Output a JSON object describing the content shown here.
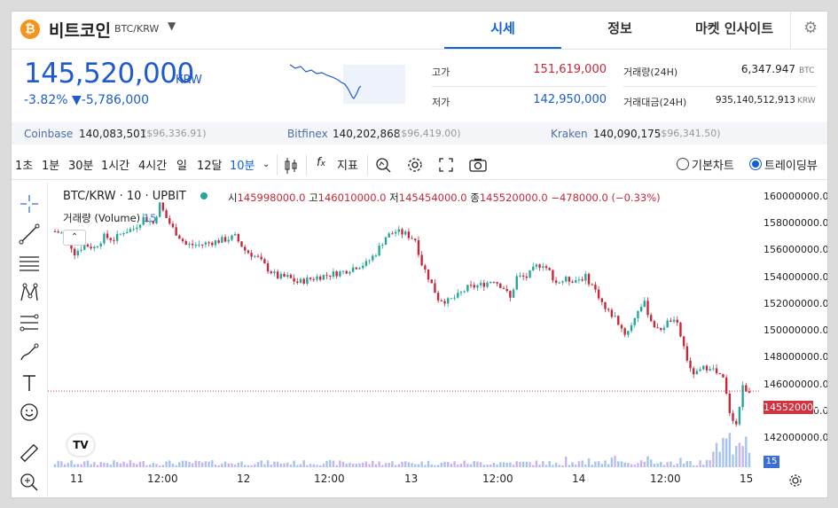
{
  "header": {
    "coin_symbol": "₿",
    "coin_name": "비트코인",
    "pair": "BTC/KRW",
    "tabs": [
      {
        "label": "시세",
        "active": true
      },
      {
        "label": "정보",
        "active": false
      },
      {
        "label": "마켓 인사이트",
        "active": false
      }
    ],
    "settings_icon": "gear-icon"
  },
  "ticker": {
    "price": "145,520,000",
    "currency": "KRW",
    "change_percent": "-3.82%",
    "change_arrow": "▼",
    "change_amount": "-5,786,000",
    "high_label": "고가",
    "high": "151,619,000",
    "low_label": "저가",
    "low": "142,950,000",
    "volume_label": "거래량(24H)",
    "volume": "6,347.947",
    "volume_unit": "BTC",
    "turnover_label": "거래대금(24H)",
    "turnover": "935,140,512,913",
    "turnover_unit": "KRW"
  },
  "exchanges": [
    {
      "name": "Coinbase",
      "price": "140,083,501",
      "usd": "($96,336.91)"
    },
    {
      "name": "Bitfinex",
      "price": "140,202,868",
      "usd": "($96,419.00)"
    },
    {
      "name": "Kraken",
      "price": "140,090,175",
      "usd": "($96,341.50)"
    }
  ],
  "toolbar": {
    "intervals": [
      "1초",
      "1분",
      "30분",
      "1시간",
      "4시간",
      "일",
      "12달",
      "10분"
    ],
    "active_interval": "10분",
    "indicator_label": "지표",
    "view_options": [
      {
        "label": "기본차트",
        "selected": false
      },
      {
        "label": "트레이딩뷰",
        "selected": true
      }
    ]
  },
  "colors": {
    "up": "#26a69a",
    "down": "#c6283a",
    "accent": "#1161d9",
    "price_blue": "#1e5ad1"
  },
  "chart_data": {
    "type": "candlestick",
    "symbol_line": "BTC/KRW · 10 · UPBIT",
    "ohlc_label": {
      "o_key": "시",
      "o": "145998000.0",
      "h_key": "고",
      "h": "146010000.0",
      "l_key": "저",
      "l": "145454000.0",
      "c_key": "종",
      "c": "145520000.0",
      "chg": "−478000.0 (−0.33%)"
    },
    "volume_label": "거래량 (Volume)",
    "volume_value": "15",
    "last_price_tag": "145520000.0",
    "volume_tag": "15",
    "y_ticks": [
      "160000000.0",
      "158000000.0",
      "156000000.0",
      "154000000.0",
      "152000000.0",
      "150000000.0",
      "148000000.0",
      "146000000.0",
      "144000000.0",
      "142000000.0"
    ],
    "ylim": [
      141500000,
      160500000
    ],
    "x_ticks": [
      "11",
      "12:00",
      "12",
      "12:00",
      "13",
      "12:00",
      "14",
      "12:00",
      "15"
    ],
    "close_path": [
      [
        0,
        157400000
      ],
      [
        3,
        157200000
      ],
      [
        6,
        155800000
      ],
      [
        9,
        156400000
      ],
      [
        12,
        156200000
      ],
      [
        15,
        157000000
      ],
      [
        18,
        156800000
      ],
      [
        21,
        157400000
      ],
      [
        24,
        157600000
      ],
      [
        27,
        158400000
      ],
      [
        30,
        158000000
      ],
      [
        32,
        159400000
      ],
      [
        34,
        158400000
      ],
      [
        36,
        157600000
      ],
      [
        40,
        156400000
      ],
      [
        44,
        156400000
      ],
      [
        48,
        156600000
      ],
      [
        52,
        156800000
      ],
      [
        55,
        157000000
      ],
      [
        58,
        156000000
      ],
      [
        62,
        155400000
      ],
      [
        65,
        154600000
      ],
      [
        68,
        154000000
      ],
      [
        71,
        154000000
      ],
      [
        74,
        153600000
      ],
      [
        77,
        153800000
      ],
      [
        80,
        154000000
      ],
      [
        84,
        154200000
      ],
      [
        88,
        154400000
      ],
      [
        92,
        154800000
      ],
      [
        95,
        155000000
      ],
      [
        98,
        155800000
      ],
      [
        101,
        157000000
      ],
      [
        104,
        157400000
      ],
      [
        107,
        157200000
      ],
      [
        110,
        156800000
      ],
      [
        112,
        155000000
      ],
      [
        114,
        154000000
      ],
      [
        117,
        152400000
      ],
      [
        120,
        152200000
      ],
      [
        123,
        152600000
      ],
      [
        126,
        153200000
      ],
      [
        130,
        153400000
      ],
      [
        134,
        153800000
      ],
      [
        137,
        153200000
      ],
      [
        139,
        152400000
      ],
      [
        141,
        154000000
      ],
      [
        144,
        154000000
      ],
      [
        147,
        154800000
      ],
      [
        149,
        155000000
      ],
      [
        151,
        154400000
      ],
      [
        153,
        153600000
      ],
      [
        156,
        153800000
      ],
      [
        159,
        153800000
      ],
      [
        162,
        154000000
      ],
      [
        164,
        153400000
      ],
      [
        166,
        152600000
      ],
      [
        168,
        151600000
      ],
      [
        171,
        151000000
      ],
      [
        174,
        149800000
      ],
      [
        176,
        150400000
      ],
      [
        178,
        151600000
      ],
      [
        180,
        152000000
      ],
      [
        182,
        150800000
      ],
      [
        184,
        150000000
      ],
      [
        186,
        150400000
      ],
      [
        188,
        150800000
      ],
      [
        190,
        150400000
      ],
      [
        192,
        148800000
      ],
      [
        194,
        147000000
      ],
      [
        196,
        146800000
      ],
      [
        198,
        147200000
      ],
      [
        200,
        147400000
      ],
      [
        202,
        146800000
      ],
      [
        204,
        146400000
      ],
      [
        206,
        144000000
      ],
      [
        208,
        143000000
      ],
      [
        210,
        145800000
      ],
      [
        212,
        145520000
      ]
    ],
    "x_range": [
      0,
      212
    ]
  }
}
